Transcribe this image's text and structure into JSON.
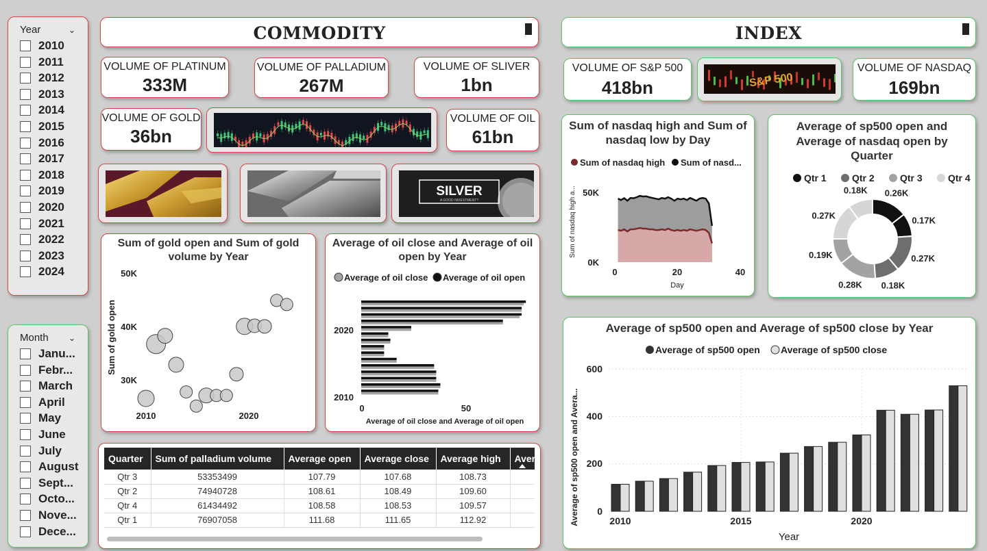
{
  "year_slicer": {
    "header": "Year",
    "items": [
      "2010",
      "2011",
      "2012",
      "2013",
      "2014",
      "2015",
      "2016",
      "2017",
      "2018",
      "2019",
      "2020",
      "2021",
      "2022",
      "2023",
      "2024"
    ]
  },
  "month_slicer": {
    "header": "Month",
    "items": [
      "Janu...",
      "Febr...",
      "March",
      "April",
      "May",
      "June",
      "July",
      "August",
      "Sept...",
      "Octo...",
      "Nove...",
      "Dece..."
    ]
  },
  "commodity": {
    "title": "COMMODITY",
    "kpis": {
      "platinum": {
        "label": "VOLUME OF PLATINUM",
        "value": "333M"
      },
      "palladium": {
        "label": "VOLUME OF PALLADIUM",
        "value": "267M"
      },
      "silver": {
        "label": "VOLUME OF SLIVER",
        "value": "1bn"
      },
      "gold": {
        "label": "VOLUME OF GOLD",
        "value": "36bn"
      },
      "oil": {
        "label": "VOLUME OF OIL",
        "value": "61bn"
      }
    },
    "silver_image_text": {
      "main": "SILVER",
      "sub": "A GOOD INVESTMENT?"
    }
  },
  "index": {
    "title": "INDEX",
    "kpis": {
      "sp500": {
        "label": "VOLUME OF S&P 500",
        "value": "418bn"
      },
      "nasdaq": {
        "label": "VOLUME OF NASDAQ",
        "value": "169bn"
      }
    },
    "sp_image_text": "S&P 500"
  },
  "gold_chart": {
    "title_lines": [
      "Sum of gold open and Sum of gold",
      "volume by Year"
    ],
    "ylabel": "Sum of gold open",
    "yticks": [
      "50K",
      "40K",
      "30K"
    ],
    "xticks": [
      "2010",
      "2020"
    ],
    "chart_data": {
      "type": "scatter",
      "title": "Sum of gold open and Sum of gold volume by Year",
      "ylabel": "Sum of gold open",
      "ylim": [
        28000,
        52000
      ],
      "xlim": [
        2010,
        2025
      ],
      "points": [
        {
          "x": 2010.0,
          "y": 29500,
          "r": 12
        },
        {
          "x": 2011.0,
          "y": 38700,
          "r": 14
        },
        {
          "x": 2011.9,
          "y": 40100,
          "r": 11
        },
        {
          "x": 2013.0,
          "y": 35200,
          "r": 11
        },
        {
          "x": 2014.0,
          "y": 30600,
          "r": 9
        },
        {
          "x": 2015.0,
          "y": 28200,
          "r": 9
        },
        {
          "x": 2016.0,
          "y": 30000,
          "r": 11
        },
        {
          "x": 2017.0,
          "y": 30000,
          "r": 9
        },
        {
          "x": 2018.0,
          "y": 30000,
          "r": 9
        },
        {
          "x": 2019.0,
          "y": 33600,
          "r": 10
        },
        {
          "x": 2019.8,
          "y": 41700,
          "r": 12
        },
        {
          "x": 2020.8,
          "y": 41800,
          "r": 10
        },
        {
          "x": 2021.8,
          "y": 41700,
          "r": 10
        },
        {
          "x": 2023.0,
          "y": 46100,
          "r": 9
        },
        {
          "x": 2024.0,
          "y": 45400,
          "r": 9
        }
      ]
    }
  },
  "oil_chart": {
    "title_lines": [
      "Average of oil close and Average of oil",
      "open by Year"
    ],
    "legend": [
      "Average of oil close",
      "Average of oil open"
    ],
    "xlabel": "Average of oil close and Average of oil open",
    "xticks": [
      "0",
      "50"
    ],
    "ycats_shown": [
      "2020",
      "2010"
    ],
    "chart_data": {
      "type": "bar",
      "orientation": "horizontal",
      "title": "Average of oil close and Average of oil open by Year",
      "xlabel": "Average of oil close and Average of oil open",
      "xlim": [
        0,
        80
      ],
      "categories": [
        "2024",
        "2023",
        "2022",
        "2021",
        "2020",
        "2019",
        "2018",
        "2017",
        "2016",
        "2015",
        "2014",
        "2013",
        "2012",
        "2011",
        "2010"
      ],
      "series": [
        {
          "name": "Average of oil close",
          "values": [
            78,
            77,
            76,
            68,
            24,
            13,
            14,
            11,
            11,
            17,
            35,
            36,
            36,
            38,
            37
          ]
        },
        {
          "name": "Average of oil open",
          "values": [
            79,
            77,
            77,
            68,
            24,
            13,
            14,
            11,
            11,
            17,
            35,
            36,
            36,
            38,
            37
          ]
        }
      ]
    }
  },
  "palladium_table": {
    "headers": [
      "Quarter",
      "Sum of palladium volume",
      "Average open",
      "Average close",
      "Average high",
      "Aver"
    ],
    "rows": [
      [
        "Qtr 3",
        "53353499",
        "107.79",
        "107.68",
        "108.73"
      ],
      [
        "Qtr 2",
        "74940728",
        "108.61",
        "108.49",
        "109.60"
      ],
      [
        "Qtr 4",
        "61434492",
        "108.58",
        "108.53",
        "109.57"
      ],
      [
        "Qtr 1",
        "76907058",
        "111.68",
        "111.65",
        "112.92"
      ]
    ]
  },
  "nasdaq_chart": {
    "title_lines": [
      "Sum of nasdaq high and Sum of",
      "nasdaq low by Day"
    ],
    "legend": [
      "Sum of nasdaq high",
      "Sum of nasd..."
    ],
    "ylabel": "Sum of nasdaq high a...",
    "xlabel": "Day",
    "yticks": [
      "50K",
      "0K"
    ],
    "xticks": [
      "0",
      "20",
      "40"
    ],
    "chart_data": {
      "type": "area",
      "title": "Sum of nasdaq high and Sum of nasdaq low by Day",
      "xlabel": "Day",
      "ylim": [
        0,
        60000
      ],
      "xlim": [
        0,
        40
      ],
      "x": [
        1,
        2,
        3,
        4,
        5,
        6,
        7,
        8,
        9,
        10,
        11,
        12,
        13,
        14,
        15,
        16,
        17,
        18,
        19,
        20,
        21,
        22,
        23,
        24,
        25,
        26,
        27,
        28,
        29,
        30,
        31
      ],
      "series": [
        {
          "name": "Sum of nasdaq high",
          "values": [
            45500,
            44500,
            45800,
            44000,
            46000,
            45800,
            46500,
            47500,
            47000,
            47200,
            46500,
            46000,
            45500,
            45000,
            46000,
            45500,
            46500,
            45500,
            44000,
            45500,
            45000,
            45500,
            44500,
            46000,
            45000,
            44000,
            45500,
            46000,
            45500,
            42000,
            26000
          ]
        },
        {
          "name": "Sum of nasdaq low",
          "values": [
            23000,
            22500,
            23500,
            22000,
            23500,
            23500,
            24000,
            24500,
            24000,
            24000,
            23500,
            23500,
            23000,
            23000,
            23500,
            23000,
            24000,
            23000,
            22500,
            23000,
            22500,
            23000,
            22500,
            23500,
            23000,
            22500,
            23000,
            23500,
            23000,
            21000,
            13500
          ]
        }
      ]
    }
  },
  "donut_chart": {
    "title_lines": [
      "Average of sp500 open and",
      "Average of nasdaq open by",
      "Quarter"
    ],
    "legend": [
      "Qtr 1",
      "Qtr 2",
      "Qtr 3",
      "Qtr 4"
    ],
    "chart_data": {
      "type": "pie",
      "title": "Average of sp500 open and Average of nasdaq open by Quarter",
      "slices": [
        {
          "label": "0.26K",
          "value": 0.26,
          "quarter": "Qtr 1",
          "color": "#111111"
        },
        {
          "label": "0.17K",
          "value": 0.17,
          "quarter": "Qtr 1",
          "color": "#111111"
        },
        {
          "label": "0.27K",
          "value": 0.27,
          "quarter": "Qtr 2",
          "color": "#6e6e6e"
        },
        {
          "label": "0.18K",
          "value": 0.18,
          "quarter": "Qtr 2",
          "color": "#6e6e6e"
        },
        {
          "label": "0.28K",
          "value": 0.28,
          "quarter": "Qtr 3",
          "color": "#a3a3a3"
        },
        {
          "label": "0.19K",
          "value": 0.19,
          "quarter": "Qtr 3",
          "color": "#a3a3a3"
        },
        {
          "label": "0.27K",
          "value": 0.27,
          "quarter": "Qtr 4",
          "color": "#d6d6d6"
        },
        {
          "label": "0.18K",
          "value": 0.18,
          "quarter": "Qtr 4",
          "color": "#d6d6d6"
        }
      ]
    }
  },
  "sp_bar_chart": {
    "title": "Average of sp500 open and Average of sp500 close by Year",
    "legend": [
      "Average of sp500 open",
      "Average of sp500 close"
    ],
    "ylabel": "Average of sp500 open and Avera...",
    "xlabel": "Year",
    "yticks": [
      "600",
      "400",
      "200",
      "0"
    ],
    "xticks": [
      "2010",
      "2015",
      "2020"
    ],
    "chart_data": {
      "type": "bar",
      "title": "Average of sp500 open and Average of sp500 close by Year",
      "xlabel": "Year",
      "ylabel": "Average of sp500 open and Average of sp500 close",
      "ylim": [
        0,
        600
      ],
      "categories": [
        "2010",
        "2011",
        "2012",
        "2013",
        "2014",
        "2015",
        "2016",
        "2017",
        "2018",
        "2019",
        "2020",
        "2021",
        "2022",
        "2023",
        "2024"
      ],
      "series": [
        {
          "name": "Average of sp500 open",
          "values": [
            114,
            127,
            138,
            165,
            193,
            206,
            208,
            245,
            273,
            291,
            322,
            426,
            409,
            427,
            529
          ]
        },
        {
          "name": "Average of sp500 close",
          "values": [
            114,
            127,
            138,
            165,
            193,
            206,
            208,
            245,
            273,
            291,
            322,
            426,
            409,
            427,
            529
          ]
        }
      ]
    }
  },
  "colors": {
    "commodity_border": "#d64545",
    "index_border": "#5cc46a",
    "open_bar": "#333333",
    "close_bar": "#e0e0e0"
  }
}
